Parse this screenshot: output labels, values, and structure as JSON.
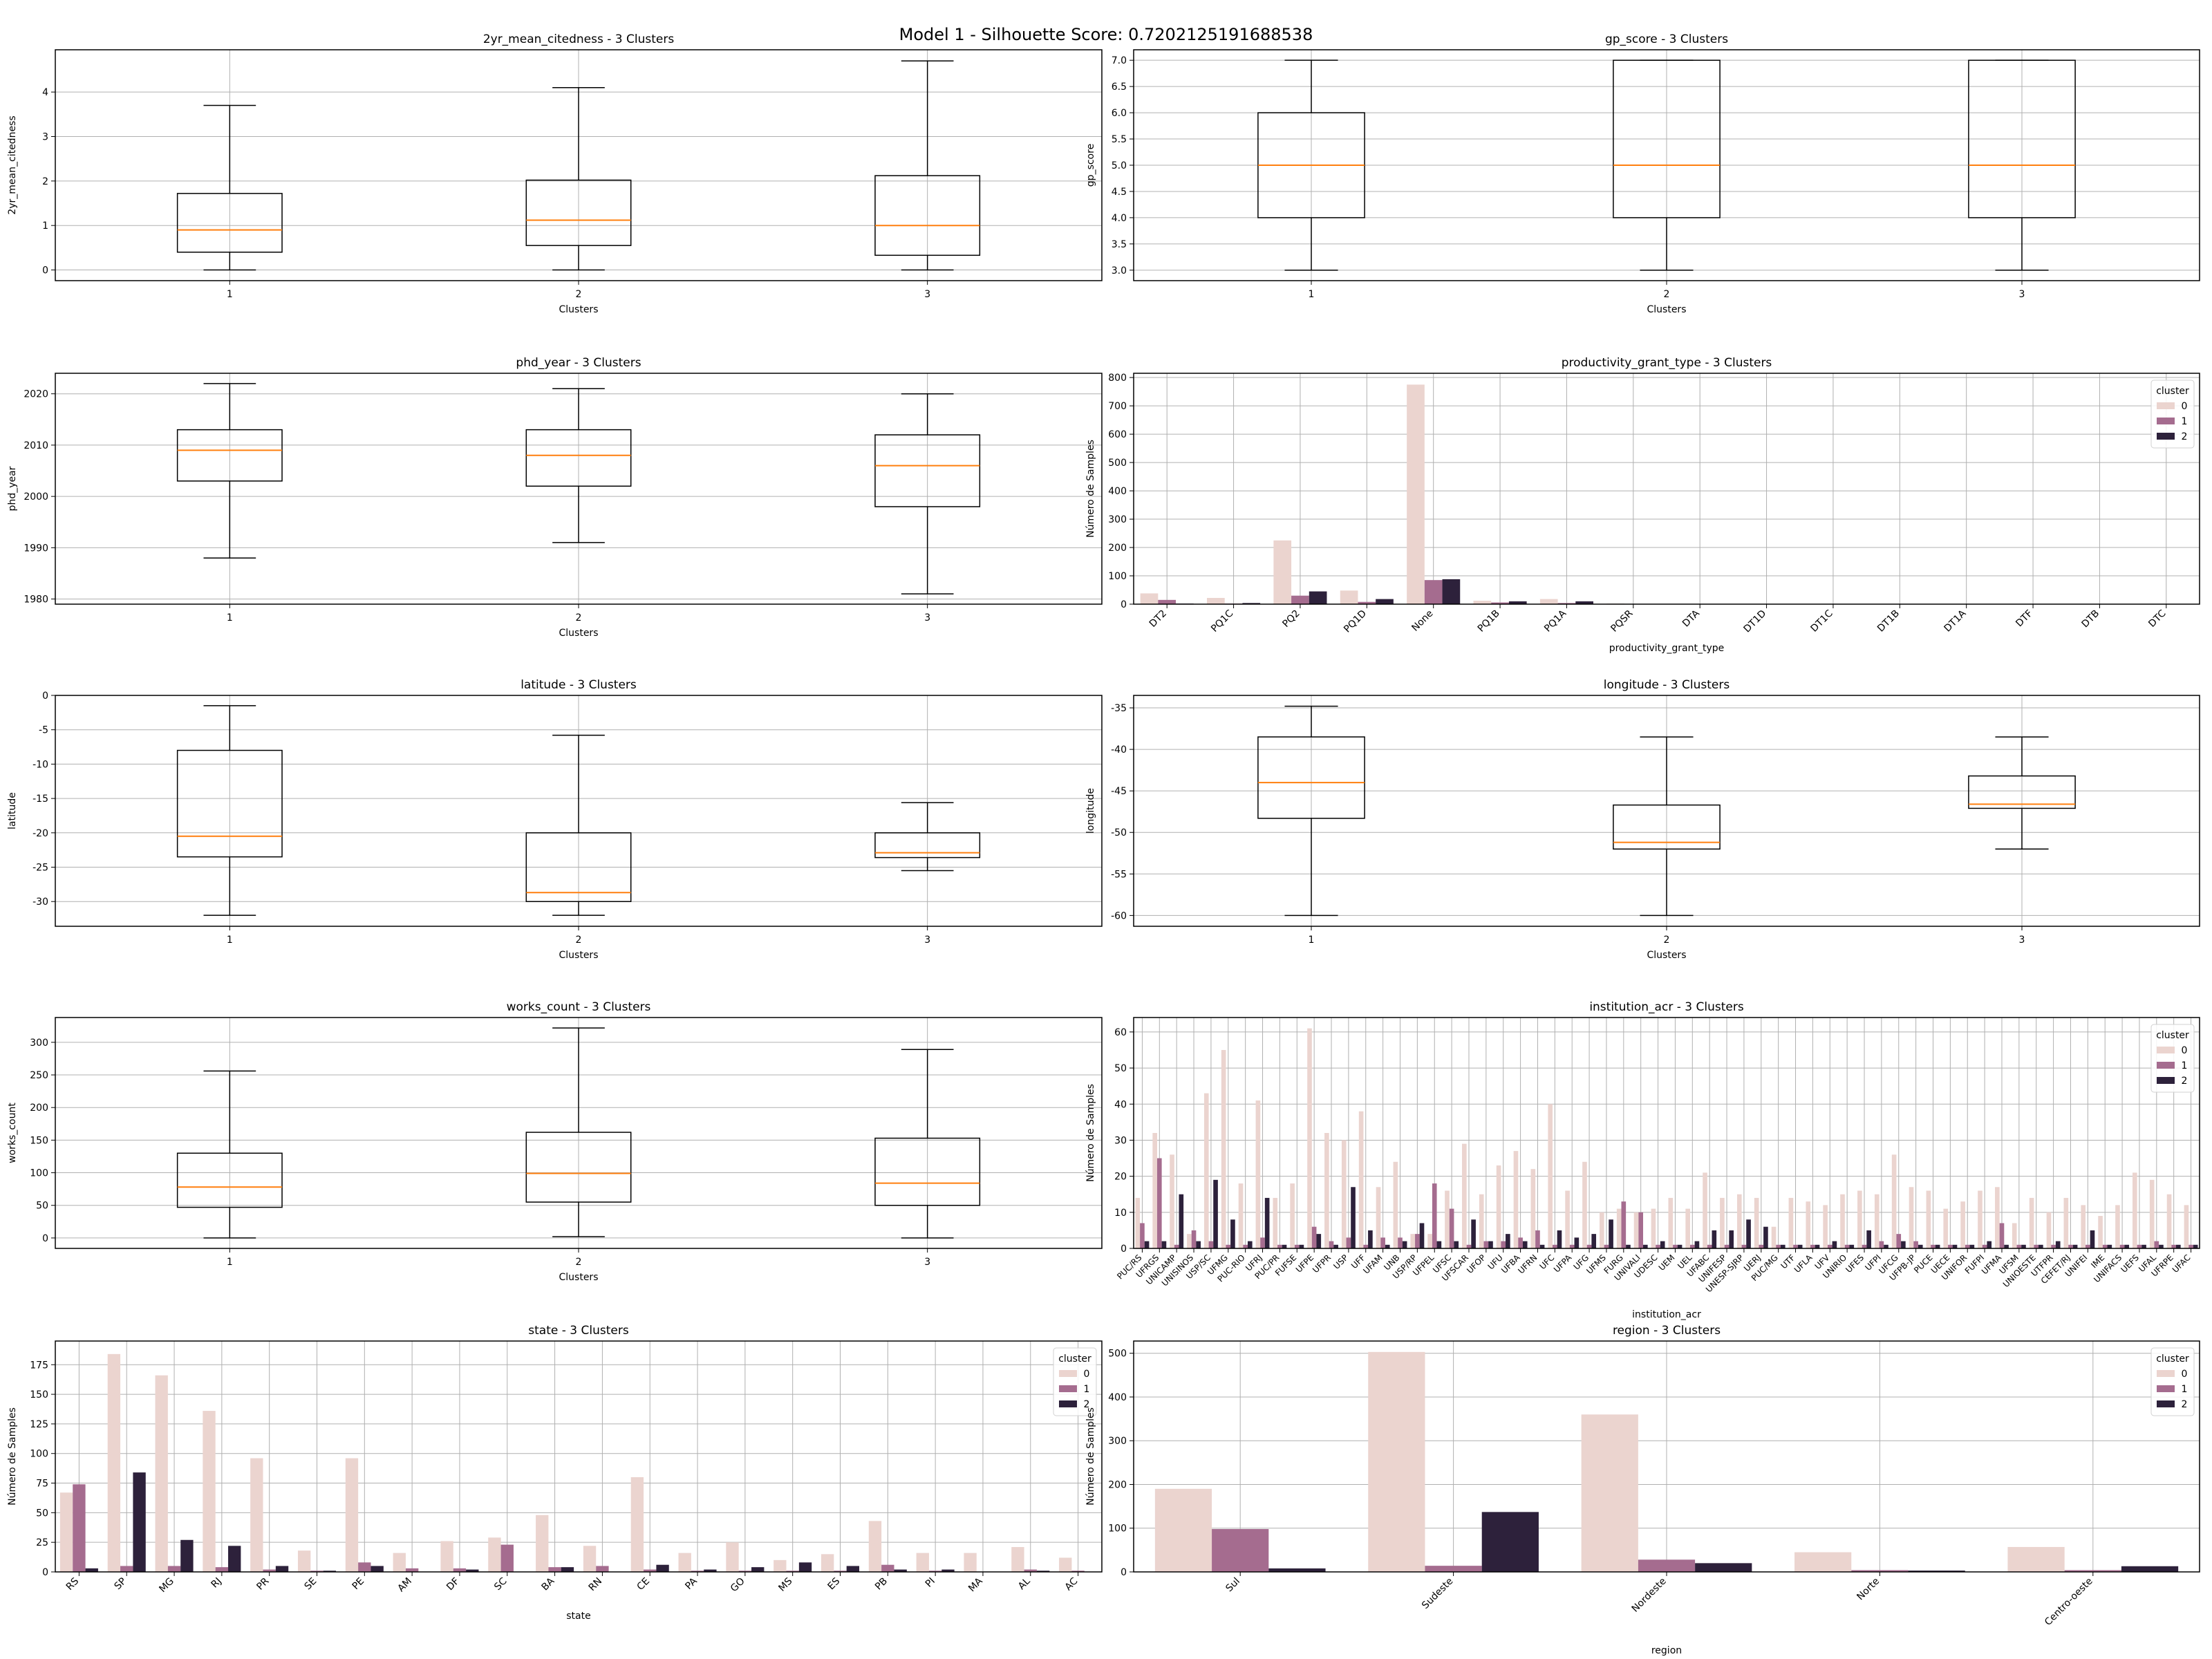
{
  "suptitle": "Model 1 - Silhouette Score: 0.7202125191688538",
  "colors": {
    "cluster_0": "#ebd4cf",
    "cluster_1": "#a56c8f",
    "cluster_2": "#2d213b",
    "median": "#ff7f0e",
    "grid": "#b0b0b0"
  },
  "chart_data": [
    {
      "type": "box",
      "title": "2yr_mean_citedness - 3 Clusters",
      "xlabel": "Clusters",
      "ylabel": "2yr_mean_citedness",
      "categories": [
        "1",
        "2",
        "3"
      ],
      "boxes": [
        {
          "whislo": 0,
          "q1": 0.4,
          "med": 0.9,
          "q3": 1.72,
          "whishi": 3.7
        },
        {
          "whislo": 0,
          "q1": 0.55,
          "med": 1.12,
          "q3": 2.02,
          "whishi": 4.1
        },
        {
          "whislo": 0,
          "q1": 0.33,
          "med": 1.0,
          "q3": 2.12,
          "whishi": 4.7
        }
      ],
      "ylim": [
        -0.24,
        4.95
      ],
      "yticks": [
        0,
        1,
        2,
        3,
        4
      ],
      "grid": true
    },
    {
      "type": "box",
      "title": "gp_score - 3 Clusters",
      "xlabel": "Clusters",
      "ylabel": "gp_score",
      "categories": [
        "1",
        "2",
        "3"
      ],
      "boxes": [
        {
          "whislo": 3.0,
          "q1": 4.0,
          "med": 5.0,
          "q3": 6.0,
          "whishi": 7.0
        },
        {
          "whislo": 3.0,
          "q1": 4.0,
          "med": 5.0,
          "q3": 7.0,
          "whishi": 7.0
        },
        {
          "whislo": 3.0,
          "q1": 4.0,
          "med": 5.0,
          "q3": 7.0,
          "whishi": 7.0
        }
      ],
      "ylim": [
        2.8,
        7.2
      ],
      "yticks": [
        3.0,
        3.5,
        4.0,
        4.5,
        5.0,
        5.5,
        6.0,
        6.5,
        7.0
      ],
      "tick_decimals": 1,
      "grid": true
    },
    {
      "type": "box",
      "title": "phd_year - 3 Clusters",
      "xlabel": "Clusters",
      "ylabel": "phd_year",
      "categories": [
        "1",
        "2",
        "3"
      ],
      "boxes": [
        {
          "whislo": 1988,
          "q1": 2003,
          "med": 2009,
          "q3": 2013,
          "whishi": 2022
        },
        {
          "whislo": 1991,
          "q1": 2002,
          "med": 2008,
          "q3": 2013,
          "whishi": 2021
        },
        {
          "whislo": 1981,
          "q1": 1998,
          "med": 2006,
          "q3": 2012,
          "whishi": 2020
        }
      ],
      "ylim": [
        1979,
        2024
      ],
      "yticks": [
        1980,
        1990,
        2000,
        2010,
        2020
      ],
      "grid": true
    },
    {
      "type": "bar",
      "title": "productivity_grant_type - 3 Clusters",
      "xlabel": "productivity_grant_type",
      "ylabel": "Número de Samples",
      "categories": [
        "DT2",
        "PQ1C",
        "PQ2",
        "PQ1D",
        "None",
        "PQ1B",
        "PQ1A",
        "PQSR",
        "DTA",
        "DT1D",
        "DT1C",
        "DT1B",
        "DT1A",
        "DTF",
        "DTB",
        "DTC"
      ],
      "series": [
        {
          "name": "0",
          "values": [
            38,
            22,
            225,
            48,
            775,
            12,
            18,
            2,
            1,
            0,
            0,
            0,
            0,
            0,
            0,
            0
          ]
        },
        {
          "name": "1",
          "values": [
            15,
            2,
            30,
            8,
            85,
            6,
            4,
            1,
            0,
            1,
            0,
            0,
            0,
            0,
            0,
            0
          ]
        },
        {
          "name": "2",
          "values": [
            2,
            4,
            45,
            18,
            88,
            10,
            10,
            0,
            0,
            0,
            1,
            0,
            0,
            0,
            0,
            0
          ]
        }
      ],
      "ylim": [
        0,
        815
      ],
      "yticks": [
        0,
        100,
        200,
        300,
        400,
        500,
        600,
        700,
        800
      ],
      "legend": {
        "title": "cluster",
        "position": "top-right"
      },
      "xrot": 45,
      "grid": true
    },
    {
      "type": "box",
      "title": "latitude - 3 Clusters",
      "xlabel": "Clusters",
      "ylabel": "latitude",
      "categories": [
        "1",
        "2",
        "3"
      ],
      "boxes": [
        {
          "whislo": -32,
          "q1": -23.5,
          "med": -20.5,
          "q3": -8,
          "whishi": -1.5
        },
        {
          "whislo": -32,
          "q1": -30,
          "med": -28.7,
          "q3": -20,
          "whishi": -5.8
        },
        {
          "whislo": -25.5,
          "q1": -23.6,
          "med": -22.9,
          "q3": -20,
          "whishi": -15.6
        }
      ],
      "ylim": [
        -33.6,
        0
      ],
      "yticks": [
        -30,
        -25,
        -20,
        -15,
        -10,
        -5,
        0
      ],
      "grid": true
    },
    {
      "type": "box",
      "title": "longitude - 3 Clusters",
      "xlabel": "Clusters",
      "ylabel": "longitude",
      "categories": [
        "1",
        "2",
        "3"
      ],
      "boxes": [
        {
          "whislo": -60,
          "q1": -48.3,
          "med": -44,
          "q3": -38.5,
          "whishi": -34.8
        },
        {
          "whislo": -60,
          "q1": -52,
          "med": -51.2,
          "q3": -46.7,
          "whishi": -38.5
        },
        {
          "whislo": -52,
          "q1": -47.1,
          "med": -46.6,
          "q3": -43.2,
          "whishi": -38.5
        }
      ],
      "ylim": [
        -61.3,
        -33.5
      ],
      "yticks": [
        -60,
        -55,
        -50,
        -45,
        -40,
        -35
      ],
      "grid": true
    },
    {
      "type": "box",
      "title": "works_count - 3 Clusters",
      "xlabel": "Clusters",
      "ylabel": "works_count",
      "categories": [
        "1",
        "2",
        "3"
      ],
      "boxes": [
        {
          "whislo": 0,
          "q1": 47,
          "med": 78,
          "q3": 130,
          "whishi": 256
        },
        {
          "whislo": 2,
          "q1": 55,
          "med": 99,
          "q3": 162,
          "whishi": 322
        },
        {
          "whislo": 0,
          "q1": 50,
          "med": 84,
          "q3": 153,
          "whishi": 289
        }
      ],
      "ylim": [
        -16,
        338
      ],
      "yticks": [
        0,
        50,
        100,
        150,
        200,
        250,
        300
      ],
      "grid": true
    },
    {
      "type": "bar",
      "title": "institution_acr - 3 Clusters",
      "xlabel": "institution_acr",
      "ylabel": "Número de Samples",
      "categories": [
        "PUC/RS",
        "UFRGS",
        "UNICAMP",
        "UNISINOS",
        "USP/SC",
        "UFMG",
        "PUC-RIO",
        "UFRJ",
        "PUC/PR",
        "FUFSE",
        "UFPE",
        "UFPR",
        "USP",
        "UFF",
        "UFAM",
        "UNB",
        "USP/RP",
        "UFPEL",
        "UFSC",
        "UFSCAR",
        "UFOP",
        "UFU",
        "UFBA",
        "UFRN",
        "UFC",
        "UFPA",
        "UFG",
        "UFMS",
        "FURG",
        "UNIVALI",
        "UDESC",
        "UEM",
        "UEL",
        "UFABC",
        "UNIFESP",
        "UNESP-SJRP",
        "UERJ",
        "PUC/MG",
        "UTF",
        "UFLA",
        "UFV",
        "UNIRIO",
        "UFES",
        "UFPI",
        "UFCG",
        "UFPB-JP",
        "PUCE",
        "UECE",
        "UNIFOR",
        "FUFPI",
        "UFMA",
        "UFSM",
        "UNIOESTE",
        "UTFPR",
        "CEFET/RJ",
        "UNIFEI",
        "IME",
        "UNIFACS",
        "UEFS",
        "UFAL",
        "UFRPE",
        "UFAC"
      ],
      "series": [
        {
          "name": "0",
          "values": [
            14,
            32,
            26,
            4,
            43,
            55,
            18,
            41,
            14,
            18,
            61,
            32,
            30,
            38,
            17,
            24,
            4,
            4,
            16,
            29,
            15,
            23,
            27,
            22,
            40,
            16,
            24,
            10,
            11,
            10,
            11,
            14,
            11,
            21,
            14,
            15,
            14,
            6,
            14,
            13,
            12,
            15,
            16,
            15,
            26,
            17,
            16,
            11,
            13,
            16,
            17,
            7,
            14,
            10,
            14,
            12,
            9,
            12,
            21,
            19,
            15,
            12
          ]
        },
        {
          "name": "1",
          "values": [
            7,
            25,
            1,
            5,
            2,
            1,
            1,
            3,
            1,
            1,
            6,
            2,
            3,
            1,
            3,
            3,
            4,
            18,
            11,
            1,
            2,
            2,
            3,
            5,
            1,
            1,
            1,
            1,
            13,
            10,
            1,
            1,
            1,
            1,
            1,
            1,
            1,
            1,
            1,
            1,
            1,
            1,
            1,
            2,
            4,
            2,
            1,
            1,
            1,
            1,
            7,
            1,
            1,
            1,
            1,
            1,
            1,
            1,
            1,
            2,
            1,
            1
          ]
        },
        {
          "name": "2",
          "values": [
            2,
            2,
            15,
            2,
            19,
            8,
            2,
            14,
            1,
            1,
            4,
            1,
            17,
            5,
            1,
            2,
            7,
            2,
            2,
            8,
            2,
            4,
            2,
            1,
            5,
            3,
            4,
            8,
            1,
            1,
            2,
            1,
            2,
            5,
            5,
            8,
            6,
            1,
            1,
            1,
            2,
            1,
            5,
            1,
            2,
            1,
            1,
            1,
            1,
            2,
            1,
            1,
            1,
            2,
            1,
            5,
            1,
            1,
            1,
            1,
            1,
            1
          ]
        }
      ],
      "ylim": [
        0,
        64
      ],
      "yticks": [
        0,
        10,
        20,
        30,
        40,
        50,
        60
      ],
      "legend": {
        "title": "cluster",
        "position": "top-right"
      },
      "xrot": 45,
      "grid": true
    },
    {
      "type": "bar",
      "title": "state - 3 Clusters",
      "xlabel": "state",
      "ylabel": "Número de Samples",
      "categories": [
        "RS",
        "SP",
        "MG",
        "RJ",
        "PR",
        "SE",
        "PE",
        "AM",
        "DF",
        "SC",
        "BA",
        "RN",
        "CE",
        "PA",
        "GO",
        "MS",
        "ES",
        "PB",
        "PI",
        "MA",
        "AL",
        "AC"
      ],
      "series": [
        {
          "name": "0",
          "values": [
            67,
            184,
            166,
            136,
            96,
            18,
            96,
            16,
            26,
            29,
            48,
            22,
            80,
            16,
            25,
            10,
            15,
            43,
            16,
            16,
            21,
            12
          ]
        },
        {
          "name": "1",
          "values": [
            74,
            5,
            5,
            4,
            2,
            1,
            8,
            3,
            3,
            23,
            4,
            5,
            2,
            1,
            1,
            1,
            1,
            6,
            1,
            0,
            2,
            1
          ]
        },
        {
          "name": "2",
          "values": [
            3,
            84,
            27,
            22,
            5,
            1,
            5,
            0,
            2,
            0,
            4,
            0,
            6,
            2,
            4,
            8,
            5,
            2,
            2,
            0,
            1,
            0
          ]
        }
      ],
      "ylim": [
        0,
        195
      ],
      "yticks": [
        0,
        25,
        50,
        75,
        100,
        125,
        150,
        175
      ],
      "legend": {
        "title": "cluster",
        "position": "top-right"
      },
      "xrot": 45,
      "grid": true
    },
    {
      "type": "bar",
      "title": "region - 3 Clusters",
      "xlabel": "region",
      "ylabel": "Número de Samples",
      "categories": [
        "Sul",
        "Sudeste",
        "Nordeste",
        "Norte",
        "Centro-oeste"
      ],
      "series": [
        {
          "name": "0",
          "values": [
            190,
            503,
            360,
            45,
            57
          ]
        },
        {
          "name": "1",
          "values": [
            98,
            14,
            28,
            4,
            4
          ]
        },
        {
          "name": "2",
          "values": [
            8,
            137,
            20,
            3,
            13
          ]
        }
      ],
      "ylim": [
        0,
        528
      ],
      "yticks": [
        0,
        100,
        200,
        300,
        400,
        500
      ],
      "legend": {
        "title": "cluster",
        "position": "top-right"
      },
      "xrot": 45,
      "grid": true
    }
  ]
}
